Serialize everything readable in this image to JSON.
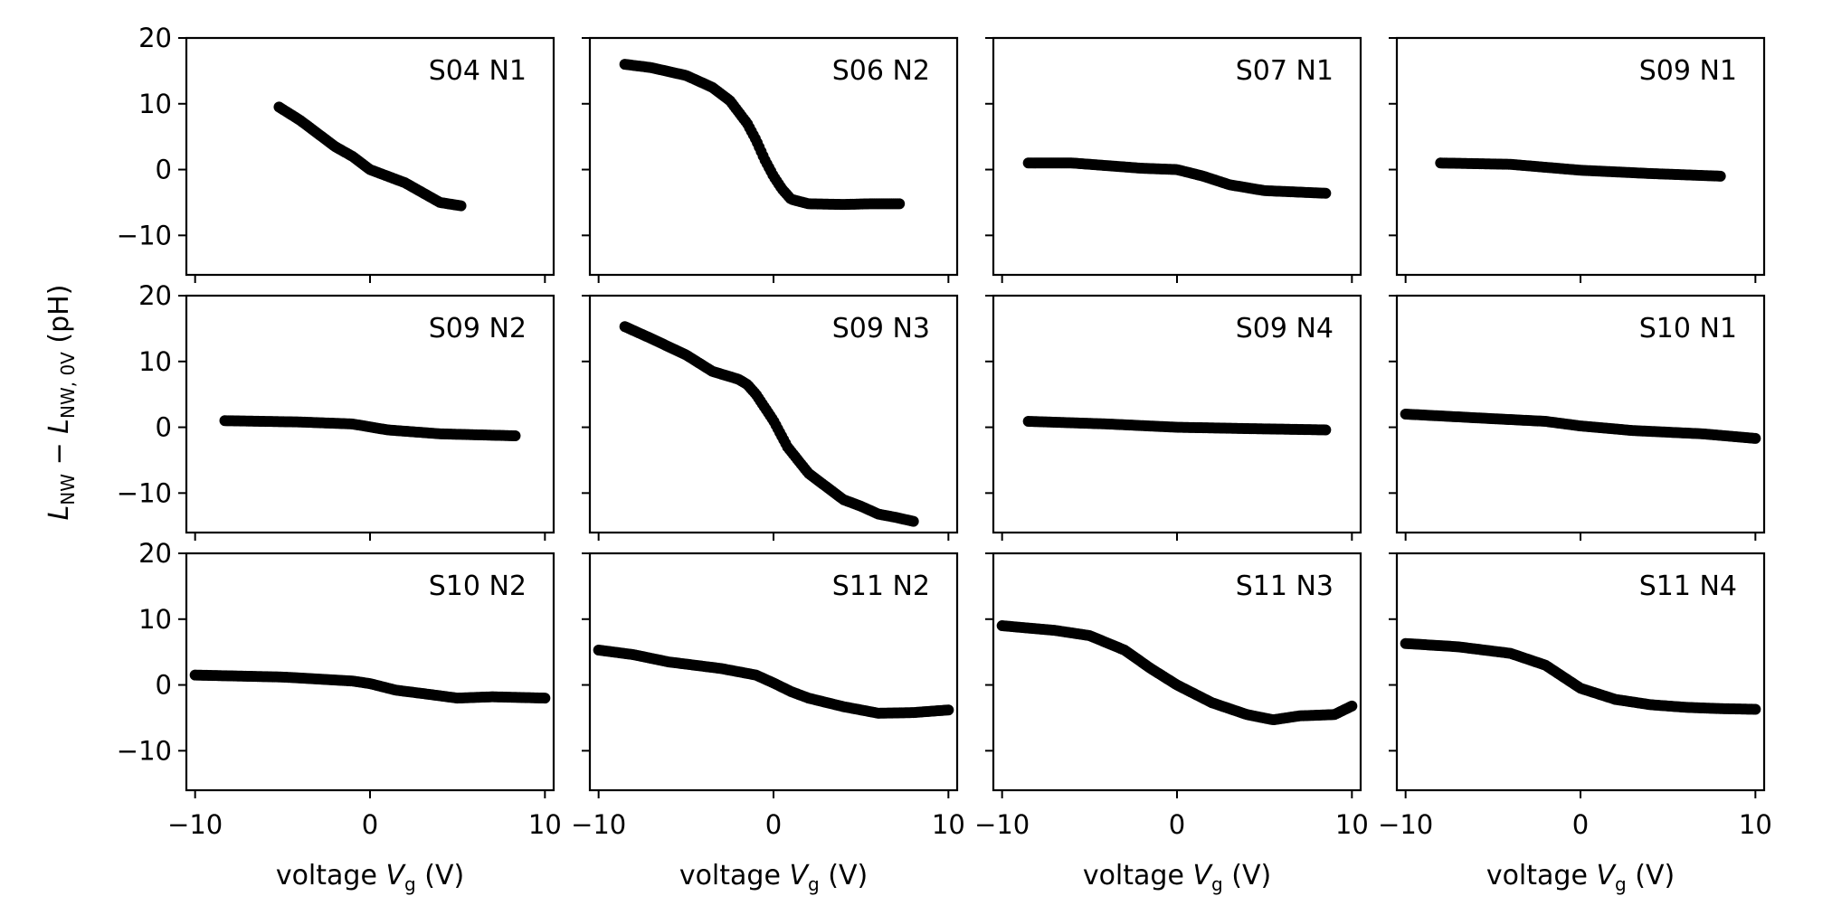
{
  "chart_data": {
    "type": "scatter",
    "layout": "3x4 grid of subplots",
    "shared_x": true,
    "shared_y": true,
    "xlabel": {
      "main": "voltage ",
      "var": "V",
      "sub": "g",
      "unit": " (V)"
    },
    "ylabel": {
      "L": "L",
      "sub1": "NW",
      "minus": " − ",
      "sub2": "NW, 0V",
      "unit": " (pH)"
    },
    "xlim": [
      -10.5,
      10.5
    ],
    "ylim": [
      -16,
      20
    ],
    "xticks": [
      -10,
      0,
      10
    ],
    "yticks": [
      -10,
      0,
      10,
      20
    ],
    "panels": [
      {
        "label": "S04 N1",
        "x_range": [
          -5.2,
          5.2
        ],
        "knots": [
          [
            -5.2,
            9.5
          ],
          [
            -4.0,
            7.5
          ],
          [
            -3.0,
            5.5
          ],
          [
            -2.0,
            3.5
          ],
          [
            -1.0,
            2.0
          ],
          [
            0,
            0
          ],
          [
            1.0,
            -1.0
          ],
          [
            2.0,
            -2.0
          ],
          [
            3.0,
            -3.5
          ],
          [
            4.0,
            -5.0
          ],
          [
            5.2,
            -5.5
          ]
        ]
      },
      {
        "label": "S06 N2",
        "x_range": [
          -8.5,
          7.2
        ],
        "knots": [
          [
            -8.5,
            16
          ],
          [
            -7.0,
            15.5
          ],
          [
            -5.0,
            14.3
          ],
          [
            -3.5,
            12.5
          ],
          [
            -2.5,
            10.5
          ],
          [
            -1.5,
            7.0
          ],
          [
            -1.0,
            4.5
          ],
          [
            -0.5,
            1.5
          ],
          [
            0,
            -1.0
          ],
          [
            0.5,
            -3.0
          ],
          [
            1.0,
            -4.5
          ],
          [
            2.0,
            -5.2
          ],
          [
            4.0,
            -5.3
          ],
          [
            5.5,
            -5.2
          ],
          [
            7.2,
            -5.2
          ]
        ]
      },
      {
        "label": "S07 N1",
        "x_range": [
          -8.5,
          8.5
        ],
        "knots": [
          [
            -8.5,
            1.0
          ],
          [
            -6.0,
            1.0
          ],
          [
            -4.0,
            0.6
          ],
          [
            -2.0,
            0.2
          ],
          [
            0,
            0
          ],
          [
            1.5,
            -1.0
          ],
          [
            3.0,
            -2.3
          ],
          [
            5.0,
            -3.2
          ],
          [
            8.5,
            -3.6
          ]
        ]
      },
      {
        "label": "S09 N1",
        "x_range": [
          -8.0,
          8.0
        ],
        "knots": [
          [
            -8.0,
            1.0
          ],
          [
            -4.0,
            0.8
          ],
          [
            0,
            -0.1
          ],
          [
            4.0,
            -0.6
          ],
          [
            8.0,
            -1.0
          ]
        ]
      },
      {
        "label": "S09 N2",
        "x_range": [
          -8.3,
          8.3
        ],
        "knots": [
          [
            -8.3,
            1.0
          ],
          [
            -4.0,
            0.8
          ],
          [
            -1.0,
            0.5
          ],
          [
            1.0,
            -0.4
          ],
          [
            4.0,
            -1.0
          ],
          [
            8.3,
            -1.3
          ]
        ]
      },
      {
        "label": "S09 N3",
        "x_range": [
          -8.5,
          8.0
        ],
        "knots": [
          [
            -8.5,
            15.3
          ],
          [
            -7.0,
            13.5
          ],
          [
            -5.0,
            11.0
          ],
          [
            -3.5,
            8.5
          ],
          [
            -2.0,
            7.3
          ],
          [
            -1.5,
            6.5
          ],
          [
            -1.0,
            5.0
          ],
          [
            0,
            1.0
          ],
          [
            0.8,
            -3.0
          ],
          [
            2.0,
            -7.0
          ],
          [
            3.0,
            -9.0
          ],
          [
            4.0,
            -11.0
          ],
          [
            5.0,
            -12.0
          ],
          [
            6.0,
            -13.2
          ],
          [
            7.0,
            -13.7
          ],
          [
            8.0,
            -14.3
          ]
        ]
      },
      {
        "label": "S09 N4",
        "x_range": [
          -8.5,
          8.5
        ],
        "knots": [
          [
            -8.5,
            0.9
          ],
          [
            -4.0,
            0.5
          ],
          [
            0,
            0
          ],
          [
            4.0,
            -0.2
          ],
          [
            8.5,
            -0.4
          ]
        ]
      },
      {
        "label": "S10 N1",
        "x_range": [
          -10,
          10
        ],
        "knots": [
          [
            -10,
            2.0
          ],
          [
            -5.0,
            1.3
          ],
          [
            -2.0,
            0.9
          ],
          [
            0,
            0.2
          ],
          [
            3.0,
            -0.5
          ],
          [
            7.0,
            -1.0
          ],
          [
            10,
            -1.7
          ]
        ]
      },
      {
        "label": "S10 N2",
        "x_range": [
          -10,
          10
        ],
        "knots": [
          [
            -10,
            1.5
          ],
          [
            -5.0,
            1.2
          ],
          [
            -1.0,
            0.6
          ],
          [
            0,
            0.2
          ],
          [
            1.5,
            -0.8
          ],
          [
            3.0,
            -1.3
          ],
          [
            5.0,
            -2.0
          ],
          [
            7.0,
            -1.8
          ],
          [
            10,
            -2.0
          ]
        ]
      },
      {
        "label": "S11 N2",
        "x_range": [
          -10,
          10
        ],
        "knots": [
          [
            -10,
            5.3
          ],
          [
            -8.0,
            4.6
          ],
          [
            -6.0,
            3.5
          ],
          [
            -3.0,
            2.5
          ],
          [
            -1.0,
            1.5
          ],
          [
            0,
            0.3
          ],
          [
            1.0,
            -1.0
          ],
          [
            2.0,
            -2.0
          ],
          [
            4.0,
            -3.3
          ],
          [
            6.0,
            -4.3
          ],
          [
            8.0,
            -4.2
          ],
          [
            10,
            -3.8
          ]
        ]
      },
      {
        "label": "S11 N3",
        "x_range": [
          -10,
          10
        ],
        "knots": [
          [
            -10,
            9.0
          ],
          [
            -7.0,
            8.3
          ],
          [
            -5.0,
            7.5
          ],
          [
            -3.0,
            5.3
          ],
          [
            -1.5,
            2.5
          ],
          [
            0,
            0
          ],
          [
            2.0,
            -2.7
          ],
          [
            4.0,
            -4.5
          ],
          [
            5.5,
            -5.3
          ],
          [
            7.0,
            -4.7
          ],
          [
            9.0,
            -4.5
          ],
          [
            10,
            -3.2
          ]
        ]
      },
      {
        "label": "S11 N4",
        "x_range": [
          -10,
          10
        ],
        "knots": [
          [
            -10,
            6.3
          ],
          [
            -7.0,
            5.8
          ],
          [
            -4.0,
            4.8
          ],
          [
            -2.0,
            3.0
          ],
          [
            0,
            -0.5
          ],
          [
            2.0,
            -2.2
          ],
          [
            4.0,
            -3.0
          ],
          [
            6.0,
            -3.4
          ],
          [
            8.0,
            -3.6
          ],
          [
            10,
            -3.7
          ]
        ]
      }
    ]
  }
}
